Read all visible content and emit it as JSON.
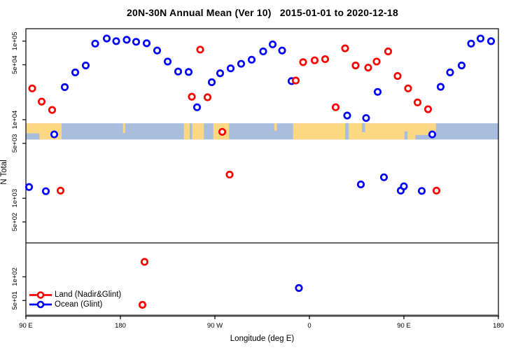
{
  "chart_data": {
    "type": "scatter",
    "title": "20N-30N Annual Mean (Ver 10)   2015-01-01 to 2020-12-18",
    "xlabel": "Longitude (deg E)",
    "ylabel": "N Total",
    "x_axis_wrap_note": "longitude axis spans 450 deg starting at 90E, wrapping through 180, 90W, 0, 90E to 180",
    "xlim": [
      90,
      540
    ],
    "ylim": [
      32,
      144000
    ],
    "y_scale": "log10",
    "grid": false,
    "x_ticks": [
      {
        "v": 90,
        "label": "90 E"
      },
      {
        "v": 180,
        "label": "180"
      },
      {
        "v": 270,
        "label": "90 W"
      },
      {
        "v": 360,
        "label": "0"
      },
      {
        "v": 450,
        "label": "90 E"
      },
      {
        "v": 540,
        "label": "180"
      }
    ],
    "y_ticks": [
      {
        "v": 100000,
        "label": "1e+05"
      },
      {
        "v": 50000,
        "label": "5e+04"
      },
      {
        "v": 10000,
        "label": "1e+04"
      },
      {
        "v": 5000,
        "label": "5e+03"
      },
      {
        "v": 1000,
        "label": "1e+03"
      },
      {
        "v": 500,
        "label": "5e+02"
      },
      {
        "v": 100,
        "label": "1e+02"
      },
      {
        "v": 50,
        "label": "5e+01"
      }
    ],
    "threshold_line_value": 270,
    "map_band": {
      "value_top": 9000,
      "value_bottom": 5600,
      "land_color": "#fdd883",
      "ocean_color": "#a9bdde",
      "land_segments": [
        {
          "from": 90,
          "to": 124,
          "f0": 0,
          "f1": 1
        },
        {
          "from": 182.5,
          "to": 184.5,
          "f0": 0,
          "f1": 0.6
        },
        {
          "from": 240.5,
          "to": 246,
          "f0": 0,
          "f1": 1
        },
        {
          "from": 248.5,
          "to": 259.5,
          "f0": 0,
          "f1": 1
        },
        {
          "from": 268.5,
          "to": 283.5,
          "f0": 0,
          "f1": 1
        },
        {
          "from": 326.5,
          "to": 329,
          "f0": 0,
          "f1": 0.45
        },
        {
          "from": 344.5,
          "to": 480.5,
          "f0": 0,
          "f1": 1
        }
      ],
      "ocean_overlays": [
        {
          "from": 90,
          "to": 103,
          "f0": 0.62,
          "f1": 1
        },
        {
          "from": 394,
          "to": 397.5,
          "f0": 0,
          "f1": 1
        },
        {
          "from": 410,
          "to": 413,
          "f0": 0,
          "f1": 0.55
        },
        {
          "from": 450.5,
          "to": 453.5,
          "f0": 0.5,
          "f1": 1
        },
        {
          "from": 461,
          "to": 480.5,
          "f0": 0.72,
          "f1": 1
        }
      ]
    },
    "legend": {
      "position": "bottom-left",
      "style": "line-with-open-circle"
    },
    "series": [
      {
        "name": "Land (Nadir&Glint)",
        "color": "#ff0000",
        "points": [
          {
            "lon": 96,
            "n": 25000
          },
          {
            "lon": 105,
            "n": 17000
          },
          {
            "lon": 115,
            "n": 13300
          },
          {
            "lon": 248,
            "n": 19600
          },
          {
            "lon": 256,
            "n": 78000
          },
          {
            "lon": 263,
            "n": 19300
          },
          {
            "lon": 277,
            "n": 7000
          },
          {
            "lon": 347,
            "n": 31500
          },
          {
            "lon": 354,
            "n": 54000
          },
          {
            "lon": 365,
            "n": 57000
          },
          {
            "lon": 375,
            "n": 59000
          },
          {
            "lon": 385,
            "n": 14400
          },
          {
            "lon": 394,
            "n": 81000
          },
          {
            "lon": 404,
            "n": 49000
          },
          {
            "lon": 416,
            "n": 46000
          },
          {
            "lon": 424,
            "n": 55000
          },
          {
            "lon": 435,
            "n": 74000
          },
          {
            "lon": 444,
            "n": 36000
          },
          {
            "lon": 454,
            "n": 25000
          },
          {
            "lon": 463,
            "n": 16600
          },
          {
            "lon": 473,
            "n": 13600
          },
          {
            "lon": 123,
            "n": 1250
          },
          {
            "lon": 284,
            "n": 2000
          },
          {
            "lon": 481,
            "n": 1250
          },
          {
            "lon": 203,
            "n": 155
          },
          {
            "lon": 201,
            "n": 44
          }
        ]
      },
      {
        "name": "Ocean (Glint)",
        "color": "#0000ff",
        "points": [
          {
            "lon": 127,
            "n": 26000
          },
          {
            "lon": 137,
            "n": 40000
          },
          {
            "lon": 147,
            "n": 49000
          },
          {
            "lon": 156,
            "n": 93000
          },
          {
            "lon": 167,
            "n": 108000
          },
          {
            "lon": 176,
            "n": 100000
          },
          {
            "lon": 186,
            "n": 104000
          },
          {
            "lon": 195,
            "n": 98000
          },
          {
            "lon": 205,
            "n": 94000
          },
          {
            "lon": 215,
            "n": 76000
          },
          {
            "lon": 225,
            "n": 55000
          },
          {
            "lon": 235,
            "n": 41000
          },
          {
            "lon": 245,
            "n": 40500
          },
          {
            "lon": 253,
            "n": 14400
          },
          {
            "lon": 267,
            "n": 30000
          },
          {
            "lon": 275,
            "n": 39000
          },
          {
            "lon": 285,
            "n": 45000
          },
          {
            "lon": 295,
            "n": 51500
          },
          {
            "lon": 305,
            "n": 58000
          },
          {
            "lon": 316,
            "n": 74000
          },
          {
            "lon": 325,
            "n": 91000
          },
          {
            "lon": 334,
            "n": 76000
          },
          {
            "lon": 343,
            "n": 31000
          },
          {
            "lon": 425,
            "n": 22600
          },
          {
            "lon": 485,
            "n": 26200
          },
          {
            "lon": 494,
            "n": 40000
          },
          {
            "lon": 505,
            "n": 49000
          },
          {
            "lon": 514,
            "n": 93000
          },
          {
            "lon": 523,
            "n": 108000
          },
          {
            "lon": 533,
            "n": 100000
          },
          {
            "lon": 117,
            "n": 6500
          },
          {
            "lon": 477,
            "n": 6500
          },
          {
            "lon": 396,
            "n": 11300
          },
          {
            "lon": 414,
            "n": 10500
          },
          {
            "lon": 93,
            "n": 1390
          },
          {
            "lon": 109,
            "n": 1230
          },
          {
            "lon": 409,
            "n": 1500
          },
          {
            "lon": 431,
            "n": 1850
          },
          {
            "lon": 447,
            "n": 1250
          },
          {
            "lon": 450,
            "n": 1420
          },
          {
            "lon": 467,
            "n": 1240
          },
          {
            "lon": 350,
            "n": 72
          }
        ]
      }
    ]
  }
}
